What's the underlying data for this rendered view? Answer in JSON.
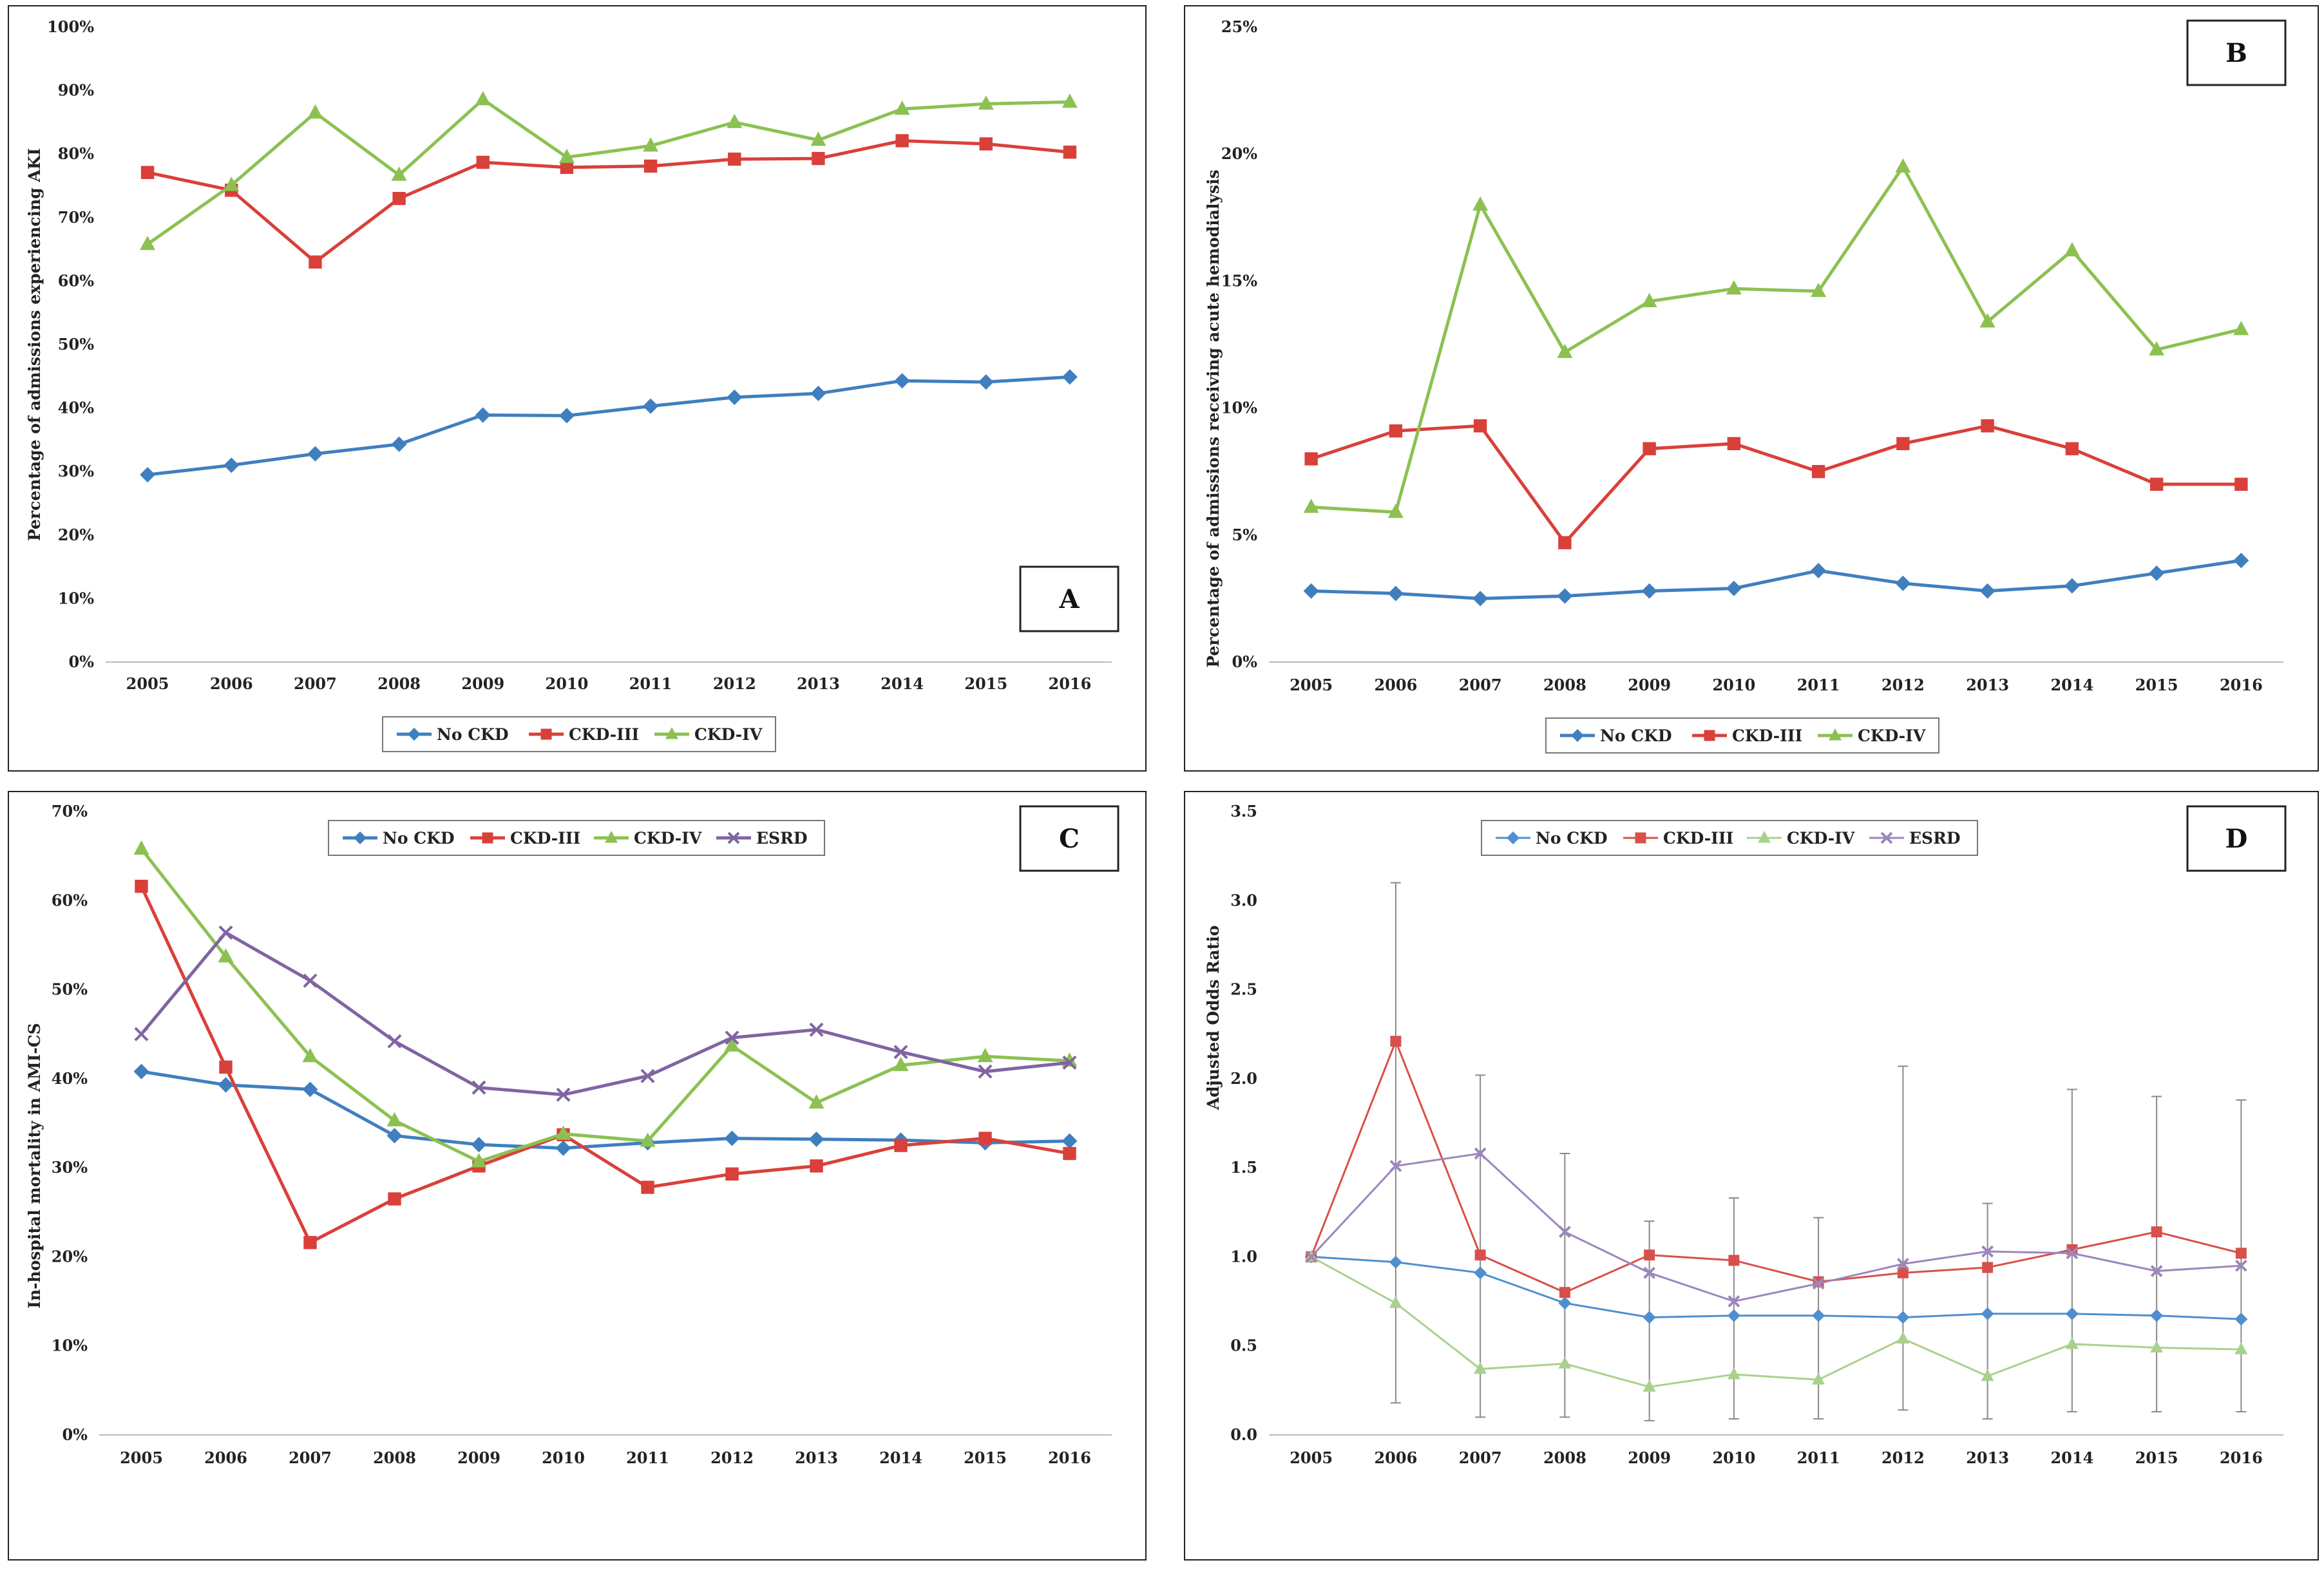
{
  "chart_data": [
    {
      "panel": "A",
      "type": "line",
      "ylabel": "Percentage of admissions experiencing AKI",
      "xlabel": "",
      "categories": [
        "2005",
        "2006",
        "2007",
        "2008",
        "2009",
        "2010",
        "2011",
        "2012",
        "2013",
        "2014",
        "2015",
        "2016"
      ],
      "ylim": [
        0,
        100
      ],
      "yticks": [
        "0%",
        "10%",
        "20%",
        "30%",
        "40%",
        "50%",
        "60%",
        "70%",
        "80%",
        "90%",
        "100%"
      ],
      "grid": false,
      "legend_position": "bottom",
      "series": [
        {
          "name": "No CKD",
          "color": "#3f7fbf",
          "marker": "diamond",
          "values": [
            29.5,
            31,
            32.8,
            34.3,
            38.9,
            38.8,
            40.3,
            41.7,
            42.3,
            44.3,
            44.1,
            44.9
          ]
        },
        {
          "name": "CKD-III",
          "color": "#d9403a",
          "marker": "square",
          "values": [
            77.1,
            74.3,
            63,
            73,
            78.7,
            77.9,
            78.1,
            79.2,
            79.3,
            82.1,
            81.6,
            80.3
          ]
        },
        {
          "name": "CKD-IV",
          "color": "#8cc152",
          "marker": "triangle",
          "values": [
            65.8,
            75.1,
            86.5,
            76.7,
            88.6,
            79.5,
            81.3,
            85,
            82.2,
            87.1,
            87.9,
            88.2
          ]
        }
      ]
    },
    {
      "panel": "B",
      "type": "line",
      "ylabel": "Percentage of admissions receiving acute hemodialysis",
      "xlabel": "",
      "categories": [
        "2005",
        "2006",
        "2007",
        "2008",
        "2009",
        "2010",
        "2011",
        "2012",
        "2013",
        "2014",
        "2015",
        "2016"
      ],
      "ylim": [
        0,
        25
      ],
      "yticks": [
        "0%",
        "5%",
        "10%",
        "15%",
        "20%",
        "25%"
      ],
      "grid": false,
      "legend_position": "bottom",
      "series": [
        {
          "name": "No CKD",
          "color": "#3f7fbf",
          "marker": "diamond",
          "values": [
            2.8,
            2.7,
            2.5,
            2.6,
            2.8,
            2.9,
            3.6,
            3.1,
            2.8,
            3,
            3.5,
            4
          ]
        },
        {
          "name": "CKD-III",
          "color": "#d9403a",
          "marker": "square",
          "values": [
            8,
            9.1,
            9.3,
            4.7,
            8.4,
            8.6,
            7.5,
            8.6,
            9.3,
            8.4,
            7,
            7
          ]
        },
        {
          "name": "CKD-IV",
          "color": "#8cc152",
          "marker": "triangle",
          "values": [
            6.1,
            5.9,
            18,
            12.2,
            14.2,
            14.7,
            14.6,
            19.5,
            13.4,
            16.2,
            12.3,
            13.1
          ]
        }
      ]
    },
    {
      "panel": "C",
      "type": "line",
      "ylabel": "In-hospital mortality in AMI-CS",
      "xlabel": "",
      "categories": [
        "2005",
        "2006",
        "2007",
        "2008",
        "2009",
        "2010",
        "2011",
        "2012",
        "2013",
        "2014",
        "2015",
        "2016"
      ],
      "ylim": [
        0,
        70
      ],
      "yticks": [
        "0%",
        "10%",
        "20%",
        "30%",
        "40%",
        "50%",
        "60%",
        "70%"
      ],
      "grid": false,
      "legend_position": "top",
      "series": [
        {
          "name": "No CKD",
          "color": "#3f7fbf",
          "marker": "diamond",
          "values": [
            40.8,
            39.3,
            38.8,
            33.6,
            32.6,
            32.2,
            32.8,
            33.3,
            33.2,
            33.1,
            32.8,
            33
          ]
        },
        {
          "name": "CKD-III",
          "color": "#d9403a",
          "marker": "square",
          "values": [
            61.6,
            41.3,
            21.6,
            26.5,
            30.2,
            33.7,
            27.8,
            29.3,
            30.2,
            32.5,
            33.3,
            31.6
          ]
        },
        {
          "name": "CKD-IV",
          "color": "#8cc152",
          "marker": "triangle",
          "values": [
            65.8,
            53.7,
            42.5,
            35.3,
            30.7,
            33.8,
            33,
            43.7,
            37.3,
            41.5,
            42.5,
            42
          ]
        },
        {
          "name": "ESRD",
          "color": "#8064a2",
          "marker": "x",
          "values": [
            45,
            56.4,
            51,
            44.2,
            39,
            38.2,
            40.3,
            44.6,
            45.5,
            43,
            40.8,
            41.8
          ]
        }
      ]
    },
    {
      "panel": "D",
      "type": "line",
      "ylabel": "Adjusted Odds Ratio",
      "xlabel": "",
      "categories": [
        "2005",
        "2006",
        "2007",
        "2008",
        "2009",
        "2010",
        "2011",
        "2012",
        "2013",
        "2014",
        "2015",
        "2016"
      ],
      "ylim": [
        0,
        3.5
      ],
      "yticks": [
        "0.0",
        "0.5",
        "1.0",
        "1.5",
        "2.0",
        "2.5",
        "3.0",
        "3.5"
      ],
      "grid": false,
      "legend_position": "top",
      "series": [
        {
          "name": "No CKD",
          "color": "#4f8fcf",
          "marker": "diamond",
          "values": [
            1,
            0.97,
            0.91,
            0.74,
            0.66,
            0.67,
            0.67,
            0.66,
            0.68,
            0.68,
            0.67,
            0.65
          ]
        },
        {
          "name": "CKD-III",
          "color": "#d9504a",
          "marker": "square",
          "values": [
            1,
            2.21,
            1.01,
            0.8,
            1.01,
            0.98,
            0.86,
            0.91,
            0.94,
            1.04,
            1.14,
            1.02
          ]
        },
        {
          "name": "CKD-IV",
          "color": "#a9d18e",
          "marker": "triangle",
          "values": [
            1,
            0.74,
            0.37,
            0.4,
            0.27,
            0.34,
            0.31,
            0.54,
            0.33,
            0.51,
            0.49,
            0.48
          ]
        },
        {
          "name": "ESRD",
          "color": "#9d86bd",
          "marker": "x",
          "values": [
            1,
            1.51,
            1.58,
            1.14,
            0.91,
            0.75,
            0.85,
            0.96,
            1.03,
            1.02,
            0.92,
            0.95
          ]
        }
      ],
      "error_bars": [
        {
          "category": "2006",
          "low": 0.18,
          "high": 3.1
        },
        {
          "category": "2007",
          "low": 0.1,
          "high": 2.02
        },
        {
          "category": "2008",
          "low": 0.1,
          "high": 1.58
        },
        {
          "category": "2009",
          "low": 0.08,
          "high": 1.2
        },
        {
          "category": "2010",
          "low": 0.09,
          "high": 1.33
        },
        {
          "category": "2011",
          "low": 0.09,
          "high": 1.22
        },
        {
          "category": "2012",
          "low": 0.14,
          "high": 2.07
        },
        {
          "category": "2013",
          "low": 0.09,
          "high": 1.3
        },
        {
          "category": "2014",
          "low": 0.13,
          "high": 1.94
        },
        {
          "category": "2015",
          "low": 0.13,
          "high": 1.9
        },
        {
          "category": "2016",
          "low": 0.13,
          "high": 1.88
        }
      ]
    }
  ]
}
